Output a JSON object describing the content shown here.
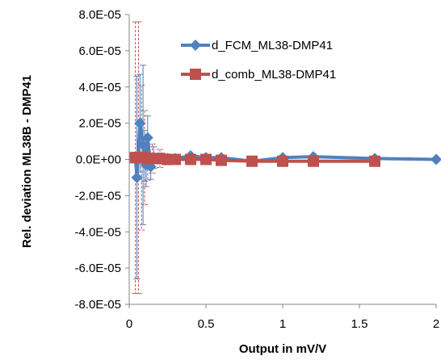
{
  "chart_data": {
    "type": "scatter",
    "title": "",
    "xlabel": "Output in mV/V",
    "ylabel": "Rel. deviation ML38B - DMP41",
    "xlim": [
      0,
      2
    ],
    "ylim": [
      -8e-05,
      8e-05
    ],
    "x_ticks": [
      "0",
      "0.5",
      "1",
      "1.5",
      "2"
    ],
    "y_ticks": [
      "8.0E-05",
      "6.0E-05",
      "4.0E-05",
      "2.0E-05",
      "0.0E+00",
      "-2.0E-05",
      "-4.0E-05",
      "-6.0E-05",
      "-8.0E-05"
    ],
    "grid": false,
    "legend_position": "top-right",
    "series": [
      {
        "name": "d_FCM_ML38-DMP41",
        "color": "#4F81BD",
        "marker": "diamond",
        "error_style": "solid",
        "points": [
          {
            "x": 0.04,
            "y": 1e-06,
            "err": 3e-06
          },
          {
            "x": 0.05,
            "y": -1e-05,
            "err": 5.6e-05
          },
          {
            "x": 0.07,
            "y": 2e-05,
            "err": 2.7e-05
          },
          {
            "x": 0.09,
            "y": 8e-06,
            "err": 4.4e-05
          },
          {
            "x": 0.1,
            "y": 2e-06,
            "err": 1.4e-05
          },
          {
            "x": 0.11,
            "y": -3e-06,
            "err": 1.2e-05
          },
          {
            "x": 0.12,
            "y": 1.2e-05,
            "err": 1.2e-05
          },
          {
            "x": 0.14,
            "y": -4e-06,
            "err": 7e-06
          },
          {
            "x": 0.16,
            "y": 1e-06,
            "err": 6e-06
          },
          {
            "x": 0.2,
            "y": 5e-07,
            "err": 3e-06
          },
          {
            "x": 0.25,
            "y": 5e-07,
            "err": 2e-06
          },
          {
            "x": 0.3,
            "y": 5e-07,
            "err": 2e-06
          },
          {
            "x": 0.4,
            "y": 2e-06,
            "err": 1e-06
          },
          {
            "x": 0.5,
            "y": 1e-06,
            "err": 1e-06
          },
          {
            "x": 0.6,
            "y": 1e-06,
            "err": 1e-06
          },
          {
            "x": 0.8,
            "y": -1e-06,
            "err": 1e-06
          },
          {
            "x": 1.0,
            "y": 1e-06,
            "err": 1e-06
          },
          {
            "x": 1.2,
            "y": 1.5e-06,
            "err": 1e-06
          },
          {
            "x": 1.6,
            "y": 5e-07,
            "err": 1e-06
          },
          {
            "x": 2.0,
            "y": 0.0,
            "err": 1e-06
          }
        ]
      },
      {
        "name": "d_comb_ML38-DMP41",
        "color": "#C0504D",
        "marker": "square",
        "error_style": "dashed",
        "points": [
          {
            "x": 0.04,
            "y": 1e-06,
            "err": 7.5e-05
          },
          {
            "x": 0.06,
            "y": 1e-06,
            "err": 7.5e-05
          },
          {
            "x": 0.08,
            "y": 1e-06,
            "err": 4e-05
          },
          {
            "x": 0.1,
            "y": 1e-06,
            "err": 2.6e-05
          },
          {
            "x": 0.12,
            "y": 5e-07,
            "err": 1.2e-05
          },
          {
            "x": 0.15,
            "y": 5e-07,
            "err": 8e-06
          },
          {
            "x": 0.2,
            "y": 5e-07,
            "err": 5e-06
          },
          {
            "x": 0.25,
            "y": 0.0,
            "err": 3e-06
          },
          {
            "x": 0.3,
            "y": 0.0,
            "err": 2e-06
          },
          {
            "x": 0.4,
            "y": 0.0,
            "err": 2e-06
          },
          {
            "x": 0.5,
            "y": 0.0,
            "err": 1e-06
          },
          {
            "x": 0.6,
            "y": -5e-07,
            "err": 1e-06
          },
          {
            "x": 0.8,
            "y": -1e-06,
            "err": 1e-06
          },
          {
            "x": 1.0,
            "y": -1e-06,
            "err": 1e-06
          },
          {
            "x": 1.2,
            "y": -1e-06,
            "err": 1e-06
          },
          {
            "x": 1.6,
            "y": -1e-06,
            "err": 1e-06
          }
        ]
      }
    ]
  }
}
